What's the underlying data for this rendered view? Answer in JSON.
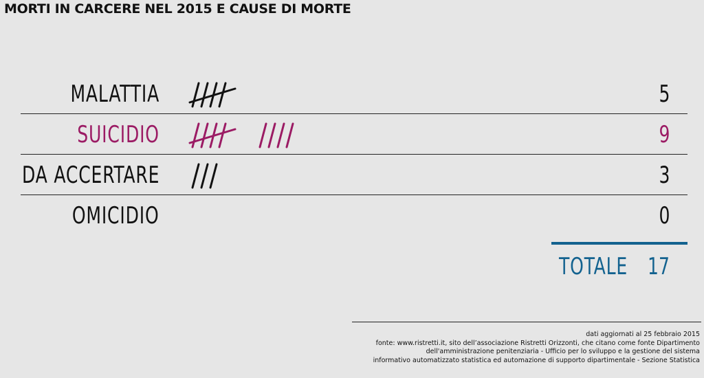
{
  "title": "MORTI IN CARCERE NEL 2015 E CAUSE DI MORTE",
  "colors": {
    "default": "#111111",
    "highlight": "#9b1b64",
    "total": "#13628f"
  },
  "chart_data": {
    "type": "table",
    "title": "MORTI IN CARCERE NEL 2015 E CAUSE DI MORTE",
    "rows": [
      {
        "label": "MALATTIA",
        "value": 5,
        "color": "#111111"
      },
      {
        "label": "SUICIDIO",
        "value": 9,
        "color": "#9b1b64"
      },
      {
        "label": "DA ACCERTARE",
        "value": 3,
        "color": "#111111"
      },
      {
        "label": "OMICIDIO",
        "value": 0,
        "color": "#111111"
      }
    ],
    "total_label": "TOTALE",
    "total_value": 17
  },
  "footer": {
    "lines": [
      "dati aggiornati al 25 febbraio 2015",
      "fonte: www.ristretti.it, sito dell’associazione Ristretti Orizzonti, che citano come fonte Dipartimento",
      "dell'amministrazione penitenziaria - Ufficio per lo sviluppo e la gestione del sistema",
      "informativo automatizzato statistica ed automazione di supporto dipartimentale - Sezione Statistica"
    ]
  }
}
